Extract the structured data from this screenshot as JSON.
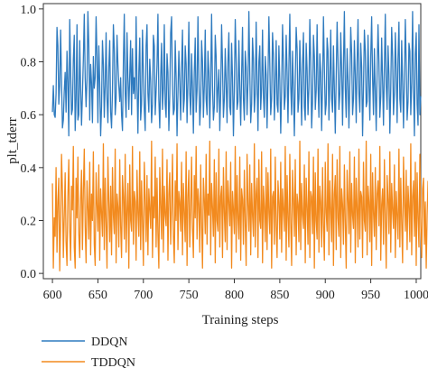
{
  "chart_data": {
    "type": "line",
    "xlabel": "Training steps",
    "ylabel": "plt_tderr",
    "xlim": [
      590,
      1005
    ],
    "ylim": [
      -0.02,
      1.02
    ],
    "xticks": [
      600,
      650,
      700,
      750,
      800,
      850,
      900,
      950,
      1000
    ],
    "yticks": [
      0.0,
      0.2,
      0.4,
      0.6,
      0.8,
      1.0
    ],
    "ytick_labels": [
      "0.0",
      "0.2",
      "0.4",
      "0.6",
      "0.8",
      "1.0"
    ],
    "legend_position": "bottom-left, below plot",
    "series": [
      {
        "name": "DDQN",
        "color": "#2f7bbf",
        "x_start": 600,
        "x_step": 1,
        "values": [
          0.61,
          0.71,
          0.6,
          0.59,
          0.68,
          0.93,
          0.86,
          0.64,
          0.71,
          0.92,
          0.73,
          0.55,
          0.58,
          0.69,
          0.76,
          0.61,
          0.84,
          0.72,
          0.52,
          0.96,
          0.77,
          0.6,
          0.62,
          0.81,
          0.9,
          0.54,
          0.66,
          0.94,
          0.58,
          0.6,
          0.88,
          0.7,
          0.56,
          0.68,
          0.81,
          0.98,
          0.74,
          0.63,
          0.73,
          0.99,
          0.86,
          0.58,
          0.79,
          0.72,
          0.57,
          0.82,
          0.7,
          0.74,
          0.97,
          0.82,
          0.57,
          0.86,
          0.72,
          0.52,
          0.63,
          0.88,
          0.79,
          0.59,
          0.71,
          0.91,
          0.66,
          0.57,
          0.78,
          0.88,
          0.61,
          0.55,
          0.69,
          0.94,
          0.85,
          0.6,
          0.66,
          0.9,
          0.79,
          0.71,
          0.65,
          0.74,
          0.6,
          0.54,
          0.8,
          0.98,
          0.68,
          0.59,
          0.91,
          0.74,
          0.62,
          0.75,
          0.88,
          0.6,
          0.85,
          0.68,
          0.74,
          0.66,
          0.97,
          0.71,
          0.53,
          0.76,
          0.89,
          0.58,
          0.64,
          0.92,
          0.76,
          0.62,
          0.54,
          0.86,
          0.94,
          0.68,
          0.61,
          0.81,
          0.73,
          0.57,
          0.64,
          0.9,
          0.86,
          0.6,
          0.69,
          0.79,
          0.98,
          0.66,
          0.55,
          0.74,
          0.87,
          0.62,
          0.7,
          0.94,
          0.64,
          0.59,
          0.83,
          0.76,
          0.54,
          0.67,
          0.91,
          0.97,
          0.71,
          0.6,
          0.62,
          0.88,
          0.74,
          0.52,
          0.68,
          0.84,
          0.72,
          0.58,
          0.78,
          0.92,
          0.61,
          0.66,
          0.86,
          0.79,
          0.57,
          0.73,
          0.95,
          0.68,
          0.6,
          0.83,
          0.7,
          0.53,
          0.76,
          0.89,
          0.61,
          0.69,
          0.97,
          0.74,
          0.56,
          0.64,
          0.88,
          0.8,
          0.59,
          0.71,
          0.92,
          0.66,
          0.6,
          0.84,
          0.76,
          0.55,
          0.73,
          0.98,
          0.71,
          0.58,
          0.63,
          0.9,
          0.82,
          0.61,
          0.7,
          0.77,
          0.54,
          0.68,
          0.94,
          0.79,
          0.59,
          0.66,
          0.85,
          0.72,
          0.57,
          0.8,
          0.91,
          0.63,
          0.6,
          0.87,
          0.74,
          0.52,
          0.69,
          0.96,
          0.81,
          0.62,
          0.65,
          0.88,
          0.7,
          0.56,
          0.75,
          0.93,
          0.66,
          0.58,
          0.84,
          0.78,
          0.6,
          0.72,
          0.99,
          0.76,
          0.57,
          0.64,
          0.89,
          0.81,
          0.61,
          0.68,
          0.95,
          0.72,
          0.54,
          0.8,
          0.86,
          0.62,
          0.7,
          0.92,
          0.67,
          0.59,
          0.82,
          0.75,
          0.55,
          0.74,
          0.97,
          0.79,
          0.6,
          0.66,
          0.91,
          0.83,
          0.58,
          0.71,
          0.88,
          0.64,
          0.61,
          0.86,
          0.73,
          0.53,
          0.69,
          0.94,
          0.8,
          0.62,
          0.67,
          0.9,
          0.76,
          0.57,
          0.78,
          0.98,
          0.71,
          0.6,
          0.84,
          0.69,
          0.52,
          0.73,
          0.93,
          0.85,
          0.61,
          0.66,
          0.88,
          0.74,
          0.56,
          0.79,
          0.91,
          0.63,
          0.58,
          0.87,
          0.77,
          0.6,
          0.7,
          0.96,
          0.8,
          0.55,
          0.65,
          0.9,
          0.82,
          0.62,
          0.69,
          0.94,
          0.72,
          0.59,
          0.83,
          0.76,
          0.54,
          0.71,
          0.97,
          0.78,
          0.6,
          0.64,
          0.89,
          0.84,
          0.58,
          0.73,
          0.92,
          0.66,
          0.61,
          0.86,
          0.7,
          0.53,
          0.74,
          0.95,
          0.81,
          0.62,
          0.68,
          0.91,
          0.77,
          0.56,
          0.79,
          0.99,
          0.7,
          0.59,
          0.85,
          0.73,
          0.55,
          0.72,
          0.93,
          0.83,
          0.6,
          0.66,
          0.88,
          0.75,
          0.57,
          0.8,
          0.96,
          0.68,
          0.61,
          0.87,
          0.78,
          0.52,
          0.7,
          0.92,
          0.84,
          0.63,
          0.65,
          0.9,
          0.72,
          0.58,
          0.82,
          0.97,
          0.74,
          0.6,
          0.85,
          0.69,
          0.54,
          0.76,
          0.94,
          0.8,
          0.59,
          0.67,
          0.89,
          0.73,
          0.56,
          0.78,
          0.98,
          0.71,
          0.62,
          0.86,
          0.75,
          0.53,
          0.7,
          0.93,
          0.82,
          0.6,
          0.68,
          0.91,
          0.77,
          0.57,
          0.81,
          0.95,
          0.66,
          0.61,
          0.88,
          0.72,
          0.55,
          0.74,
          0.96,
          0.79,
          0.58,
          0.65,
          0.87,
          0.84,
          0.6,
          0.72,
          0.99,
          0.7,
          0.52,
          0.83,
          0.91,
          0.64,
          0.56,
          0.94,
          0.6,
          0.67
        ]
      },
      {
        "name": "TDDQN",
        "color": "#f28a1e",
        "x_start": 600,
        "x_step": 1,
        "values": [
          0.34,
          0.02,
          0.21,
          0.14,
          0.4,
          0.08,
          0.27,
          0.36,
          0.01,
          0.19,
          0.45,
          0.31,
          0.06,
          0.22,
          0.38,
          0.12,
          0.03,
          0.29,
          0.43,
          0.17,
          0.05,
          0.33,
          0.24,
          0.48,
          0.1,
          0.02,
          0.36,
          0.21,
          0.44,
          0.15,
          0.06,
          0.28,
          0.39,
          0.09,
          0.31,
          0.47,
          0.18,
          0.04,
          0.35,
          0.25,
          0.13,
          0.42,
          0.07,
          0.3,
          0.2,
          0.46,
          0.11,
          0.03,
          0.38,
          0.26,
          0.16,
          0.41,
          0.05,
          0.32,
          0.23,
          0.14,
          0.49,
          0.09,
          0.36,
          0.19,
          0.02,
          0.44,
          0.27,
          0.12,
          0.33,
          0.07,
          0.4,
          0.22,
          0.15,
          0.47,
          0.04,
          0.3,
          0.25,
          0.1,
          0.43,
          0.18,
          0.06,
          0.37,
          0.29,
          0.13,
          0.45,
          0.08,
          0.24,
          0.34,
          0.02,
          0.41,
          0.2,
          0.16,
          0.48,
          0.11,
          0.31,
          0.27,
          0.05,
          0.39,
          0.23,
          0.14,
          0.46,
          0.09,
          0.35,
          0.19,
          0.03,
          0.42,
          0.28,
          0.12,
          0.37,
          0.07,
          0.32,
          0.24,
          0.17,
          0.5,
          0.06,
          0.29,
          0.21,
          0.44,
          0.1,
          0.36,
          0.15,
          0.02,
          0.4,
          0.26,
          0.13,
          0.47,
          0.08,
          0.33,
          0.22,
          0.18,
          0.43,
          0.05,
          0.3,
          0.38,
          0.11,
          0.25,
          0.45,
          0.14,
          0.04,
          0.35,
          0.2,
          0.49,
          0.09,
          0.31,
          0.27,
          0.16,
          0.42,
          0.07,
          0.34,
          0.23,
          0.12,
          0.46,
          0.03,
          0.29,
          0.39,
          0.1,
          0.24,
          0.44,
          0.17,
          0.06,
          0.37,
          0.21,
          0.48,
          0.13,
          0.32,
          0.26,
          0.08,
          0.41,
          0.19,
          0.02,
          0.36,
          0.28,
          0.15,
          0.45,
          0.11,
          0.3,
          0.22,
          0.5,
          0.07,
          0.34,
          0.25,
          0.14,
          0.43,
          0.04,
          0.38,
          0.2,
          0.16,
          0.47,
          0.1,
          0.29,
          0.33,
          0.06,
          0.4,
          0.23,
          0.12,
          0.46,
          0.09,
          0.35,
          0.27,
          0.18,
          0.42,
          0.02,
          0.31,
          0.24,
          0.15,
          0.48,
          0.08,
          0.37,
          0.21,
          0.13,
          0.44,
          0.05,
          0.32,
          0.28,
          0.11,
          0.39,
          0.19,
          0.03,
          0.45,
          0.26,
          0.16,
          0.41,
          0.07,
          0.34,
          0.22,
          0.14,
          0.49,
          0.1,
          0.3,
          0.36,
          0.06,
          0.43,
          0.2,
          0.17,
          0.46,
          0.04,
          0.33,
          0.25,
          0.12,
          0.4,
          0.09,
          0.38,
          0.23,
          0.15,
          0.47,
          0.02,
          0.29,
          0.31,
          0.11,
          0.44,
          0.18,
          0.06,
          0.35,
          0.27,
          0.13,
          0.42,
          0.08,
          0.32,
          0.24,
          0.16,
          0.48,
          0.05,
          0.37,
          0.21,
          0.1,
          0.45,
          0.19,
          0.03,
          0.39,
          0.28,
          0.14,
          0.43,
          0.07,
          0.3,
          0.26,
          0.12,
          0.5,
          0.09,
          0.34,
          0.22,
          0.17,
          0.41,
          0.04,
          0.36,
          0.25,
          0.11,
          0.46,
          0.06,
          0.31,
          0.29,
          0.15,
          0.44,
          0.02,
          0.38,
          0.2,
          0.13,
          0.47,
          0.08,
          0.33,
          0.27,
          0.1,
          0.4,
          0.18,
          0.05,
          0.42,
          0.23,
          0.16,
          0.49,
          0.07,
          0.35,
          0.24,
          0.12,
          0.45,
          0.03,
          0.3,
          0.37,
          0.09,
          0.43,
          0.21,
          0.14,
          0.48,
          0.06,
          0.32,
          0.26,
          0.11,
          0.41,
          0.19,
          0.02,
          0.39,
          0.28,
          0.15,
          0.46,
          0.08,
          0.34,
          0.22,
          0.17,
          0.44,
          0.04,
          0.36,
          0.25,
          0.1,
          0.47,
          0.13,
          0.31,
          0.29,
          0.06,
          0.42,
          0.2,
          0.16,
          0.5,
          0.07,
          0.33,
          0.27,
          0.12,
          0.45,
          0.03,
          0.38,
          0.23,
          0.14,
          0.4,
          0.09,
          0.3,
          0.35,
          0.18,
          0.48,
          0.05,
          0.26,
          0.32,
          0.11,
          0.43,
          0.21,
          0.02,
          0.37,
          0.28,
          0.15,
          0.46,
          0.08,
          0.34,
          0.24,
          0.17,
          0.41,
          0.06,
          0.31,
          0.22,
          0.13,
          0.47,
          0.1,
          0.36,
          0.19,
          0.04,
          0.44,
          0.27,
          0.16,
          0.39,
          0.09,
          0.33,
          0.25,
          0.12,
          0.49,
          0.07,
          0.29,
          0.35,
          0.14,
          0.42,
          0.03,
          0.38,
          0.21,
          0.1,
          0.45,
          0.18,
          0.06,
          0.32,
          0.36,
          0.11,
          0.27,
          0.02,
          0.22,
          0.35
        ]
      }
    ]
  }
}
